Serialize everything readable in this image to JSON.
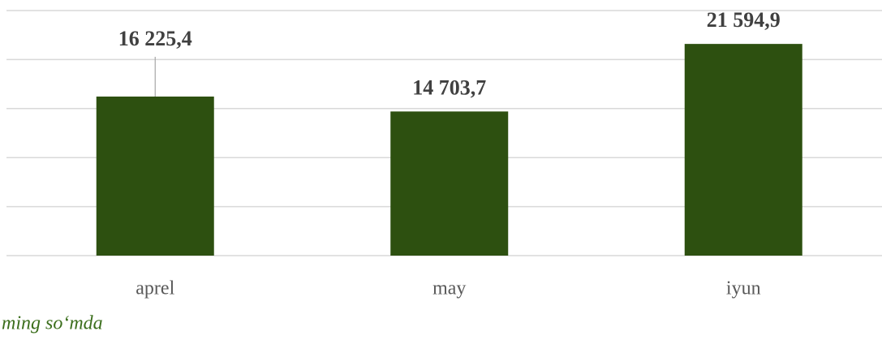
{
  "chart_data": {
    "type": "bar",
    "categories": [
      "aprel",
      "may",
      "iyun"
    ],
    "values": [
      16225.4,
      14703.7,
      21594.9
    ],
    "value_labels": [
      "16 225,4",
      "14 703,7",
      "21 594,9"
    ],
    "color": "#2d5010",
    "ylim": [
      0,
      25000
    ],
    "yticks": [
      0,
      5000,
      10000,
      15000,
      20000,
      25000
    ],
    "grid": true,
    "annotation": "ming so‘mda"
  }
}
